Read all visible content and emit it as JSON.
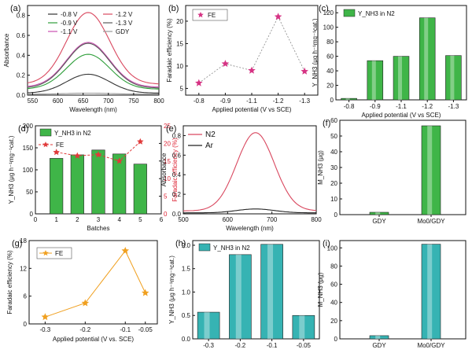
{
  "chart_data": [
    {
      "panel": "(a)",
      "type": "line",
      "xlabel": "Wavelength (nm)",
      "ylabel": "Absorbance",
      "xlim": [
        540,
        800
      ],
      "ylim": [
        0,
        0.9
      ],
      "xticks": [
        550,
        600,
        650,
        700,
        750,
        800
      ],
      "yticks": [
        0.0,
        0.2,
        0.4,
        0.6,
        0.8
      ],
      "peak_x": 660,
      "series": [
        {
          "name": "-0.8 V",
          "color": "#333333",
          "peak": 0.21,
          "baseline": 0.02
        },
        {
          "name": "-0.9 V",
          "color": "#2e9e3a",
          "peak": 0.41,
          "baseline": 0.06
        },
        {
          "name": "-1.1 V",
          "color": "#c94fb0",
          "peak": 0.53,
          "baseline": 0.08
        },
        {
          "name": "-1.2 V",
          "color": "#d9485f",
          "peak": 0.83,
          "baseline": 0.11
        },
        {
          "name": "-1.3 V",
          "color": "#5a5a5a",
          "peak": 0.52,
          "baseline": 0.07
        },
        {
          "name": "GDY",
          "color": "#999999",
          "peak": 0.02,
          "baseline": 0.01
        }
      ]
    },
    {
      "panel": "(b)",
      "type": "scatter",
      "xlabel": "Applied potential (V vs SCE)",
      "ylabel": "Faradaic efficiency (%)",
      "categories": [
        "-0.8",
        "-0.9",
        "-1.1",
        "-1.2",
        "-1.3"
      ],
      "values": [
        6.2,
        10.5,
        9.0,
        21.0,
        8.8
      ],
      "ylim": [
        3.5,
        23.5
      ],
      "yticks": [
        5,
        10,
        15,
        20
      ],
      "legend": "FE",
      "color": "#d63384"
    },
    {
      "panel": "(c)",
      "type": "bar",
      "xlabel": "Applied potential (V vs SCE)",
      "ylabel": "Y_NH3 (μg h⁻¹mg⁻¹cat.)",
      "legend": "Y_NH3 in N2",
      "categories": [
        "-0.8",
        "-0.9",
        "-1.1",
        "-1.2",
        "-1.3"
      ],
      "values": [
        2,
        54,
        60,
        113,
        61
      ],
      "ylim": [
        0,
        130
      ],
      "yticks": [
        0,
        20,
        40,
        60,
        80,
        100,
        120
      ],
      "color": "#3fb548"
    },
    {
      "panel": "(d)",
      "type": "bar",
      "xlabel": "Batches",
      "ylabel": "Y_NH3 (μg h⁻¹mg⁻¹cat.)",
      "ylabel_right": "Faradaic efficiency (%)",
      "categories": [
        1,
        2,
        3,
        4,
        5
      ],
      "values": [
        126,
        134,
        145,
        136,
        113
      ],
      "fe_values": [
        17.5,
        16.5,
        16.8,
        15.0,
        20.5
      ],
      "legend": [
        "Y_NH3 in N2",
        "FE"
      ],
      "xlim": [
        0,
        6
      ],
      "xticks": [
        0,
        1,
        2,
        3,
        4,
        5,
        6
      ],
      "ylim": [
        0,
        200
      ],
      "yticks": [
        0,
        50,
        100,
        150,
        200
      ],
      "ylim_right": [
        0,
        25
      ],
      "yticks_right": [
        0,
        5,
        10,
        15,
        20,
        25
      ],
      "color": "#3fb548",
      "fe_color": "#e03a3a"
    },
    {
      "panel": "(e)",
      "type": "line",
      "xlabel": "Wavelength (nm)",
      "ylabel": "Absorbance",
      "xlim": [
        500,
        800
      ],
      "ylim": [
        0,
        0.9
      ],
      "xticks": [
        500,
        600,
        700,
        800
      ],
      "yticks": [
        0.0,
        0.2,
        0.4,
        0.6,
        0.8
      ],
      "peak_x": 663,
      "series": [
        {
          "name": "N2",
          "color": "#d9485f",
          "peak": 0.83,
          "baseline": 0.03
        },
        {
          "name": "Ar",
          "color": "#222222",
          "peak": 0.05,
          "baseline": 0.01
        }
      ]
    },
    {
      "panel": "(f)",
      "type": "bar",
      "ylabel": "M_NH3 (μg)",
      "categories": [
        "GDY",
        "Mo0/GDY"
      ],
      "values": [
        1.5,
        56.5
      ],
      "ylim": [
        0,
        60
      ],
      "yticks": [
        0,
        10,
        20,
        30,
        40,
        50,
        60
      ],
      "color": "#3fb548"
    },
    {
      "panel": "(g)",
      "type": "line",
      "xlabel": "Applied potential (V vs. SCE)",
      "ylabel": "Faradaic efficiency (%)",
      "legend": "FE",
      "x": [
        -0.3,
        -0.2,
        -0.1,
        -0.05
      ],
      "values": [
        1.5,
        4.5,
        15.8,
        6.7
      ],
      "xlim": [
        -0.34,
        -0.02
      ],
      "xticks": [
        -0.3,
        -0.2,
        -0.1,
        -0.05
      ],
      "ylim": [
        0,
        18
      ],
      "yticks": [
        0,
        6,
        12,
        18
      ],
      "color": "#f0a020"
    },
    {
      "panel": "(h)",
      "type": "bar",
      "ylabel": "Y_NH3 (μg h⁻¹mg⁻¹cat.)",
      "legend": "Y_NH3 in N2",
      "categories": [
        "-0.3",
        "-0.2",
        "-0.1",
        "-0.05"
      ],
      "values": [
        0.57,
        1.8,
        2.02,
        0.5
      ],
      "ylim": [
        0,
        2.1
      ],
      "yticks": [
        0.0,
        0.5,
        1.0,
        1.5,
        2.0
      ],
      "color": "#36b3b3"
    },
    {
      "panel": "(i)",
      "type": "bar",
      "ylabel": "M_NH3 (μg)",
      "categories": [
        "GDY",
        "Mo0/GDY"
      ],
      "values": [
        3.5,
        104
      ],
      "ylim": [
        0,
        108
      ],
      "yticks": [
        0,
        20,
        40,
        60,
        80,
        100
      ],
      "color": "#36b3b3"
    }
  ]
}
